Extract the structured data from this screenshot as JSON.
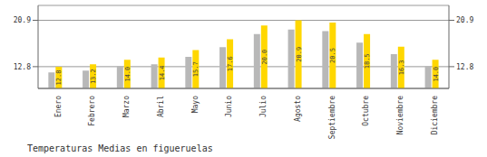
{
  "chart_data": {
    "type": "bar",
    "title": "Temperaturas Medias en figueruelas",
    "categories": [
      "Enero",
      "Febrero",
      "Marzo",
      "Abril",
      "Mayo",
      "Junio",
      "Julio",
      "Agosto",
      "Septiembre",
      "Octubre",
      "Noviembre",
      "Diciembre"
    ],
    "series": [
      {
        "color": "#B8B8B8",
        "values": [
          11.8,
          12.1,
          12.9,
          13.2,
          14.5,
          16.2,
          18.5,
          19.3,
          19.0,
          17.0,
          15.0,
          12.9
        ]
      },
      {
        "color": "#FFD700",
        "values": [
          12.8,
          13.2,
          14.0,
          14.4,
          15.7,
          17.6,
          20.0,
          20.9,
          20.5,
          18.5,
          16.3,
          14.0
        ],
        "value_labels": [
          "12.8",
          "13.2",
          "14.0",
          "14.4",
          "15.7",
          "17.6",
          "20.0",
          "20.9",
          "20.5",
          "18.5",
          "16.3",
          "14.0"
        ],
        "data_labels": true
      }
    ],
    "ylim": [
      9,
      23.5
    ],
    "yticks": [
      12.8,
      20.9
    ],
    "y2lim": [
      9,
      23.5
    ],
    "y2ticks": [
      12.8,
      20.9
    ],
    "grid": true
  }
}
